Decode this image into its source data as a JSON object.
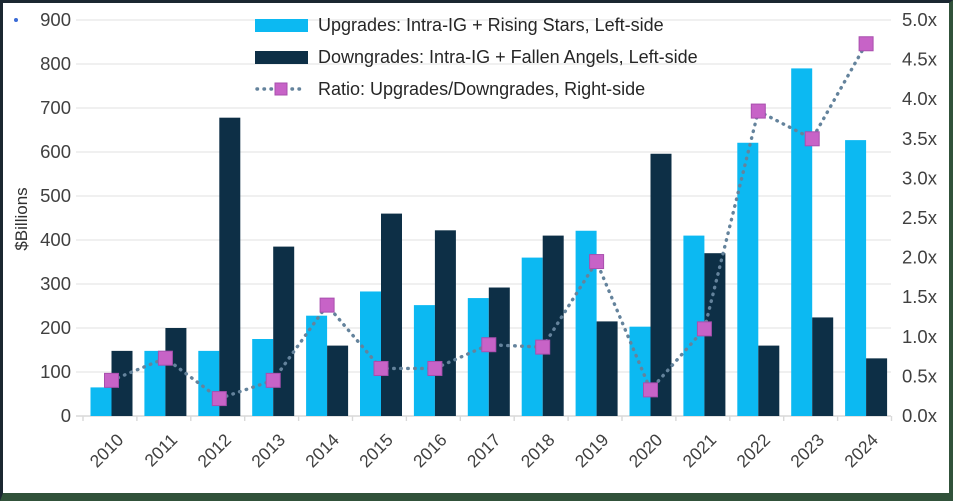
{
  "chart_data": {
    "type": "combo_bar_line",
    "title": "",
    "categories": [
      "2010",
      "2011",
      "2012",
      "2013",
      "2014",
      "2015",
      "2016",
      "2017",
      "2018",
      "2019",
      "2020",
      "2021",
      "2022",
      "2023",
      "2024"
    ],
    "series": [
      {
        "name": "Upgrades: Intra-IG + Rising Stars, Left-side",
        "type": "bar",
        "axis": "left",
        "color": "#0cb9f2",
        "values": [
          65,
          148,
          148,
          175,
          228,
          283,
          252,
          268,
          360,
          421,
          203,
          410,
          621,
          790,
          627
        ]
      },
      {
        "name": "Downgrades: Intra-IG + Fallen Angels, Left-side",
        "type": "bar",
        "axis": "left",
        "color": "#0d2f46",
        "values": [
          148,
          200,
          678,
          385,
          160,
          460,
          422,
          292,
          410,
          215,
          596,
          370,
          160,
          224,
          131
        ]
      },
      {
        "name": "Ratio: Upgrades/Downgrades, Right-side",
        "type": "line",
        "line_style": "dotted",
        "marker": "square",
        "axis": "right",
        "color": "#64839c",
        "marker_color": "#c763c7",
        "marker_border": "#a94fae",
        "values": [
          0.45,
          0.73,
          0.22,
          0.45,
          1.4,
          0.6,
          0.6,
          0.9,
          0.87,
          1.95,
          0.33,
          1.1,
          3.85,
          3.5,
          4.7
        ]
      }
    ],
    "left_axis": {
      "label": "$Billions",
      "min": 0,
      "max": 900,
      "tick_step": 100,
      "ticks": [
        "0",
        "100",
        "200",
        "300",
        "400",
        "500",
        "600",
        "700",
        "800",
        "900"
      ]
    },
    "right_axis": {
      "label": "",
      "min": 0,
      "max": 5,
      "tick_step": 0.5,
      "ticks": [
        "0.0x",
        "0.5x",
        "1.0x",
        "1.5x",
        "2.0x",
        "2.5x",
        "3.0x",
        "3.5x",
        "4.0x",
        "4.5x",
        "5.0x"
      ]
    },
    "grid": "horizontal",
    "gridline_color": "#ececec",
    "axis_line_color": "#d9d9d9",
    "tick_label_color": "#404040",
    "legend_position": "top-center"
  }
}
